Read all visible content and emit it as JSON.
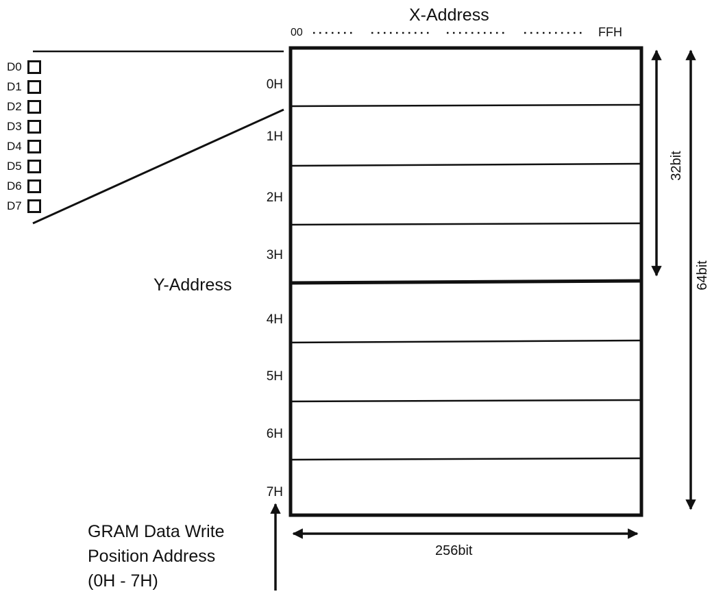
{
  "x_address": {
    "title": "X-Address",
    "start_label": "00",
    "end_label": "FFH"
  },
  "y_address": {
    "title": "Y-Address",
    "pages": [
      "0H",
      "1H",
      "2H",
      "3H",
      "4H",
      "5H",
      "6H",
      "7H"
    ]
  },
  "data_bits": [
    "D0",
    "D1",
    "D2",
    "D3",
    "D4",
    "D5",
    "D6",
    "D7"
  ],
  "dimensions": {
    "width_label": "256bit",
    "half_height_label": "32bit",
    "full_height_label": "64bit"
  },
  "write_position": {
    "lines": [
      "GRAM Data Write",
      "Position Address",
      "(0H - 7H)"
    ]
  }
}
